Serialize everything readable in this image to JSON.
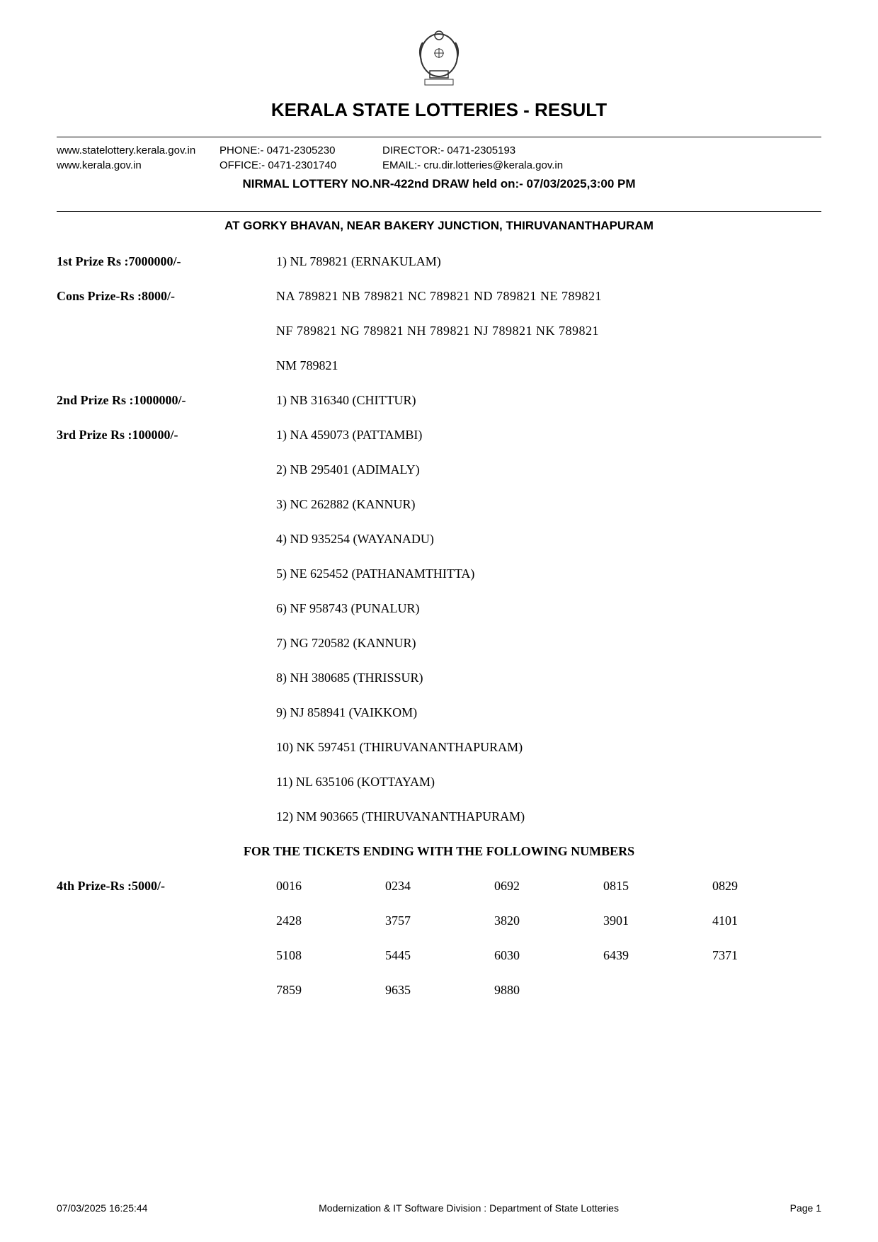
{
  "header": {
    "title": "KERALA STATE LOTTERIES - RESULT",
    "website1": "www.statelottery.kerala.gov.in",
    "website2": "www.kerala.gov.in",
    "phone": "PHONE:- 0471-2305230",
    "office": "OFFICE:- 0471-2301740",
    "director": "DIRECTOR:- 0471-2305193",
    "email": "EMAIL:- cru.dir.lotteries@kerala.gov.in",
    "draw_info": "NIRMAL   LOTTERY NO.NR-422nd DRAW held on:-  07/03/2025,3:00 PM",
    "venue": "AT GORKY BHAVAN,  NEAR BAKERY JUNCTION, THIRUVANANTHAPURAM"
  },
  "prizes": {
    "first": {
      "label": "1st Prize Rs :7000000/-",
      "winners": [
        "1) NL 789821 (ERNAKULAM)"
      ]
    },
    "cons": {
      "label": "Cons Prize-Rs :8000/-",
      "lines": [
        "NA 789821  NB 789821 NC 789821 ND 789821 NE 789821",
        "NF 789821  NG 789821 NH 789821 NJ 789821  NK 789821",
        "NM 789821"
      ]
    },
    "second": {
      "label": "2nd Prize Rs :1000000/-",
      "winners": [
        "1) NB 316340 (CHITTUR)"
      ]
    },
    "third": {
      "label": "3rd Prize Rs :100000/-",
      "winners": [
        "1) NA 459073 (PATTAMBI)",
        "2) NB 295401 (ADIMALY)",
        "3) NC 262882 (KANNUR)",
        "4) ND 935254 (WAYANADU)",
        "5) NE 625452 (PATHANAMTHITTA)",
        "6) NF 958743 (PUNALUR)",
        "7) NG 720582 (KANNUR)",
        "8) NH 380685 (THRISSUR)",
        "9) NJ 858941 (VAIKKOM)",
        "10) NK 597451 (THIRUVANANTHAPURAM)",
        "11) NL 635106 (KOTTAYAM)",
        "12) NM 903665 (THIRUVANANTHAPURAM)"
      ]
    },
    "section_header": "FOR THE TICKETS ENDING WITH THE FOLLOWING NUMBERS",
    "fourth": {
      "label": "4th Prize-Rs :5000/-",
      "numbers": [
        "0016",
        "0234",
        "0692",
        "0815",
        "0829",
        "2428",
        "3757",
        "3820",
        "3901",
        "4101",
        "5108",
        "5445",
        "6030",
        "6439",
        "7371",
        "7859",
        "9635",
        "9880"
      ]
    }
  },
  "footer": {
    "left": "07/03/2025 16:25:44",
    "center": "Modernization & IT Software Division : Department of State Lotteries",
    "right": "Page 1"
  },
  "style": {
    "background_color": "#ffffff",
    "text_color": "#000000",
    "title_fontsize": 26,
    "body_fontsize": 18,
    "contact_fontsize": 15,
    "footer_fontsize": 14
  }
}
